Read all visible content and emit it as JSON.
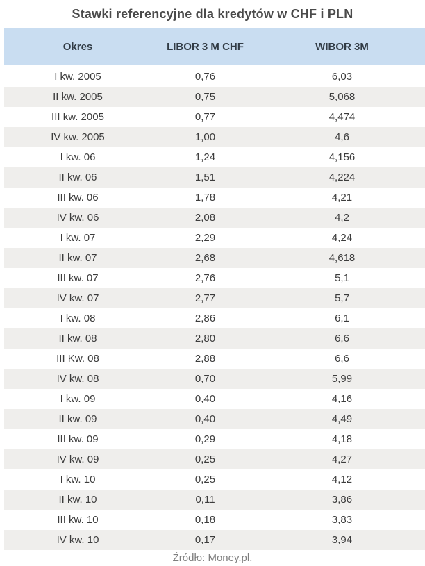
{
  "title": "Stawki referencyjne dla kredytów w CHF i PLN",
  "source": "Źródło: Money.pl.",
  "colors": {
    "header_bg": "#c9ddf1",
    "alt_row_bg": "#efeeec",
    "header_text": "#323c46",
    "cell_text": "#3c3c3c",
    "title_text": "#4a4a4a",
    "source_text": "#7e7e7e"
  },
  "chart_data": {
    "type": "table",
    "title": "Stawki referencyjne dla kredytów w CHF i PLN",
    "columns": [
      "Okres",
      "LIBOR 3 M CHF",
      "WIBOR 3M"
    ],
    "rows": [
      [
        "I kw. 2005",
        "0,76",
        "6,03"
      ],
      [
        "II kw. 2005",
        "0,75",
        "5,068"
      ],
      [
        "III kw. 2005",
        "0,77",
        "4,474"
      ],
      [
        "IV kw. 2005",
        "1,00",
        "4,6"
      ],
      [
        "I kw. 06",
        "1,24",
        "4,156"
      ],
      [
        "II kw. 06",
        "1,51",
        "4,224"
      ],
      [
        "III kw. 06",
        "1,78",
        "4,21"
      ],
      [
        "IV kw. 06",
        "2,08",
        "4,2"
      ],
      [
        "I kw. 07",
        "2,29",
        "4,24"
      ],
      [
        "II kw. 07",
        "2,68",
        "4,618"
      ],
      [
        "III kw. 07",
        "2,76",
        "5,1"
      ],
      [
        "IV kw. 07",
        "2,77",
        "5,7"
      ],
      [
        "I kw. 08",
        "2,86",
        "6,1"
      ],
      [
        "II kw. 08",
        "2,80",
        "6,6"
      ],
      [
        "III Kw. 08",
        "2,88",
        "6,6"
      ],
      [
        "IV kw. 08",
        "0,70",
        "5,99"
      ],
      [
        "I kw. 09",
        "0,40",
        "4,16"
      ],
      [
        "II kw. 09",
        "0,40",
        "4,49"
      ],
      [
        "III kw. 09",
        "0,29",
        "4,18"
      ],
      [
        "IV kw. 09",
        "0,25",
        "4,27"
      ],
      [
        "I kw. 10",
        "0,25",
        "4,12"
      ],
      [
        "II kw. 10",
        "0,11",
        "3,86"
      ],
      [
        "III kw. 10",
        "0,18",
        "3,83"
      ],
      [
        "IV kw. 10",
        "0,17",
        "3,94"
      ]
    ],
    "source": "Źródło: Money.pl.",
    "layout": {
      "legend": "none",
      "grid": "off",
      "row_striping": "alternating white / light-gray",
      "alignment": "all columns centered"
    }
  }
}
